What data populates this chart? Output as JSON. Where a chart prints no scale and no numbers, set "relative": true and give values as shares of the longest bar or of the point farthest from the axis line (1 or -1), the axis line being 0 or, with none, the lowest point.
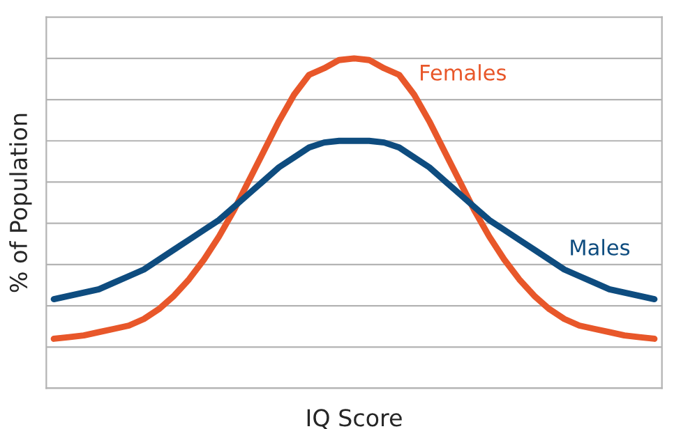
{
  "chart_data": {
    "type": "line",
    "relative": true,
    "xlabel": "IQ Score",
    "ylabel": "% of Population",
    "grid": "y",
    "legend": false,
    "marker": "none",
    "line_style": "solid",
    "categories": [
      null,
      null,
      null,
      null,
      null,
      null,
      null,
      null,
      null,
      null,
      null,
      null,
      null,
      null,
      null,
      null,
      null,
      null,
      null,
      null,
      null,
      null,
      null,
      null,
      null,
      null,
      null,
      null,
      null,
      null,
      null,
      null,
      null,
      null,
      null,
      null,
      null,
      null,
      null,
      null,
      null
    ],
    "series": [
      {
        "name": "Females",
        "color": "#e8572a",
        "values": [
          0.15,
          0.155,
          0.16,
          0.17,
          0.18,
          0.19,
          0.21,
          0.24,
          0.28,
          0.33,
          0.39,
          0.46,
          0.54,
          0.63,
          0.72,
          0.81,
          0.89,
          0.95,
          0.97,
          0.995,
          1.0,
          0.995,
          0.97,
          0.95,
          0.89,
          0.81,
          0.72,
          0.63,
          0.54,
          0.46,
          0.39,
          0.33,
          0.28,
          0.24,
          0.21,
          0.19,
          0.18,
          0.17,
          0.16,
          0.155,
          0.15
        ]
      },
      {
        "name": "Males",
        "color": "#0e4c7f",
        "values": [
          0.27,
          0.28,
          0.29,
          0.3,
          0.32,
          0.34,
          0.36,
          0.39,
          0.42,
          0.45,
          0.48,
          0.51,
          0.55,
          0.59,
          0.63,
          0.67,
          0.7,
          0.73,
          0.745,
          0.75,
          0.75,
          0.75,
          0.745,
          0.73,
          0.7,
          0.67,
          0.63,
          0.59,
          0.55,
          0.51,
          0.48,
          0.45,
          0.42,
          0.39,
          0.36,
          0.34,
          0.32,
          0.3,
          0.29,
          0.28,
          0.27
        ]
      }
    ]
  }
}
